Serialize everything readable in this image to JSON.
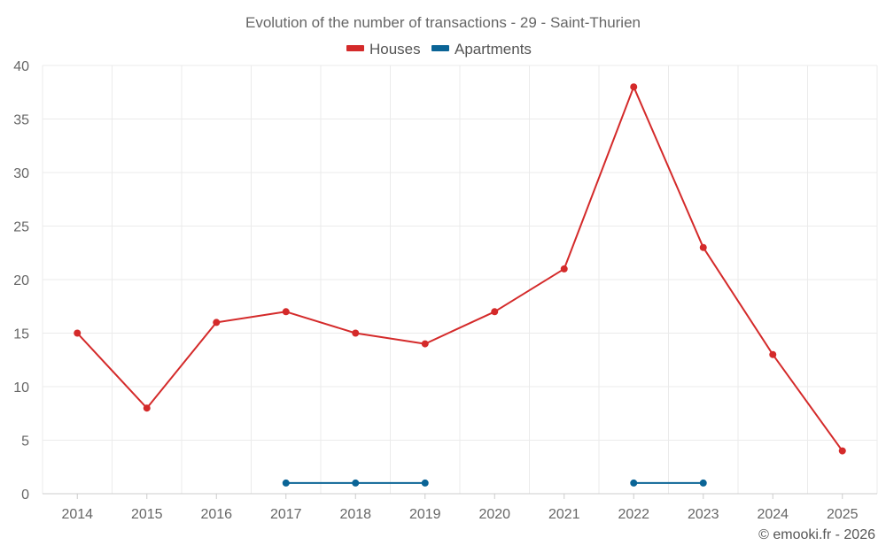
{
  "chart_data": {
    "type": "line",
    "title": "Evolution of the number of transactions - 29 - Saint-Thurien",
    "categories": [
      "2014",
      "2015",
      "2016",
      "2017",
      "2018",
      "2019",
      "2020",
      "2021",
      "2022",
      "2023",
      "2024",
      "2025"
    ],
    "series": [
      {
        "name": "Houses",
        "color": "#d42a2a",
        "values": [
          15,
          8,
          16,
          17,
          15,
          14,
          17,
          21,
          38,
          23,
          13,
          4
        ]
      },
      {
        "name": "Apartments",
        "color": "#0a6496",
        "values": [
          null,
          null,
          null,
          1,
          1,
          1,
          null,
          null,
          1,
          1,
          null,
          null
        ]
      }
    ],
    "yticks": [
      0,
      5,
      10,
      15,
      20,
      25,
      30,
      35,
      40
    ],
    "ylim": [
      0,
      40
    ],
    "grid": true,
    "legend": "top-center"
  },
  "credit": "© emooki.fr - 2026"
}
